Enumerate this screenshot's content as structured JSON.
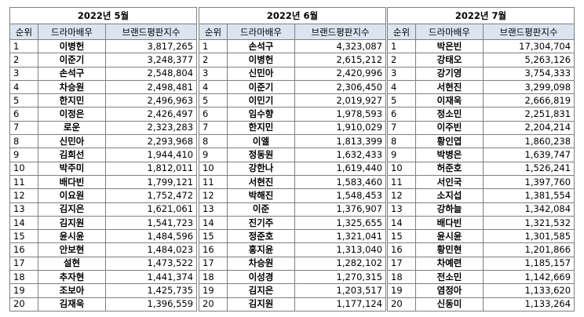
{
  "tables": [
    {
      "title": "2022년 5월",
      "columns": [
        "순위",
        "드라마배우",
        "브랜드평판지수"
      ],
      "rows": [
        [
          "1",
          "이병헌",
          "3,817,265"
        ],
        [
          "2",
          "이준기",
          "3,248,377"
        ],
        [
          "3",
          "손석구",
          "2,548,804"
        ],
        [
          "4",
          "차승원",
          "2,498,481"
        ],
        [
          "5",
          "한지민",
          "2,496,963"
        ],
        [
          "6",
          "이정은",
          "2,426,497"
        ],
        [
          "7",
          "로운",
          "2,323,283"
        ],
        [
          "8",
          "신민아",
          "2,293,968"
        ],
        [
          "9",
          "김희선",
          "1,944,410"
        ],
        [
          "10",
          "박주미",
          "1,812,011"
        ],
        [
          "11",
          "배다빈",
          "1,799,121"
        ],
        [
          "12",
          "이요원",
          "1,752,472"
        ],
        [
          "13",
          "김지은",
          "1,621,061"
        ],
        [
          "14",
          "김지원",
          "1,541,723"
        ],
        [
          "15",
          "윤시윤",
          "1,484,596"
        ],
        [
          "16",
          "안보현",
          "1,484,023"
        ],
        [
          "17",
          "설현",
          "1,473,522"
        ],
        [
          "18",
          "추자현",
          "1,441,374"
        ],
        [
          "19",
          "조보아",
          "1,425,735"
        ],
        [
          "20",
          "김재욱",
          "1,396,559"
        ]
      ]
    },
    {
      "title": "2022년 6월",
      "columns": [
        "순위",
        "드라마배우",
        "브랜드평판지수"
      ],
      "rows": [
        [
          "1",
          "손석구",
          "4,323,087"
        ],
        [
          "2",
          "이병헌",
          "2,615,212"
        ],
        [
          "3",
          "신민아",
          "2,420,996"
        ],
        [
          "4",
          "이준기",
          "2,306,450"
        ],
        [
          "5",
          "이민기",
          "2,019,927"
        ],
        [
          "6",
          "임수향",
          "1,978,593"
        ],
        [
          "7",
          "한지민",
          "1,910,029"
        ],
        [
          "8",
          "이엘",
          "1,813,399"
        ],
        [
          "9",
          "정동원",
          "1,632,433"
        ],
        [
          "10",
          "강한나",
          "1,619,440"
        ],
        [
          "11",
          "서현진",
          "1,583,460"
        ],
        [
          "12",
          "박해진",
          "1,548,453"
        ],
        [
          "13",
          "이준",
          "1,376,907"
        ],
        [
          "14",
          "진기주",
          "1,325,655"
        ],
        [
          "15",
          "정준호",
          "1,321,041"
        ],
        [
          "16",
          "홍지윤",
          "1,313,040"
        ],
        [
          "17",
          "차승원",
          "1,282,102"
        ],
        [
          "18",
          "이성경",
          "1,270,315"
        ],
        [
          "19",
          "김지은",
          "1,203,517"
        ],
        [
          "20",
          "김지원",
          "1,177,124"
        ]
      ]
    },
    {
      "title": "2022년 7월",
      "columns": [
        "순위",
        "드라마배우",
        "브랜드평판지수"
      ],
      "rows": [
        [
          "1",
          "박은빈",
          "17,304,704"
        ],
        [
          "2",
          "강태오",
          "5,263,126"
        ],
        [
          "3",
          "강기영",
          "3,754,333"
        ],
        [
          "4",
          "서현진",
          "3,299,098"
        ],
        [
          "5",
          "이재욱",
          "2,666,819"
        ],
        [
          "6",
          "정소민",
          "2,251,831"
        ],
        [
          "7",
          "이주빈",
          "2,204,214"
        ],
        [
          "8",
          "황인엽",
          "1,860,238"
        ],
        [
          "9",
          "박병은",
          "1,639,747"
        ],
        [
          "10",
          "허준호",
          "1,526,241"
        ],
        [
          "11",
          "서인국",
          "1,397,760"
        ],
        [
          "12",
          "소지섭",
          "1,381,554"
        ],
        [
          "13",
          "강하늘",
          "1,342,084"
        ],
        [
          "14",
          "배다빈",
          "1,321,532"
        ],
        [
          "15",
          "윤시윤",
          "1,301,585"
        ],
        [
          "16",
          "황민현",
          "1,201,866"
        ],
        [
          "17",
          "차예련",
          "1,185,157"
        ],
        [
          "18",
          "전소민",
          "1,142,669"
        ],
        [
          "19",
          "염정아",
          "1,133,620"
        ],
        [
          "20",
          "신동미",
          "1,133,264"
        ]
      ]
    }
  ]
}
